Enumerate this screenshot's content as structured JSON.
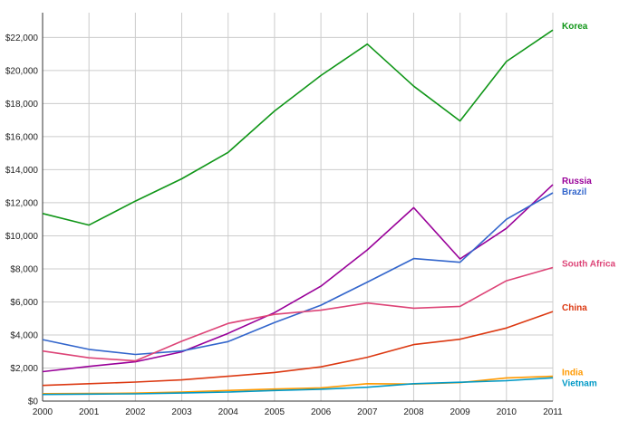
{
  "chart_data": {
    "type": "line",
    "title": "",
    "xlabel": "",
    "ylabel": "",
    "x": [
      2000,
      2001,
      2002,
      2003,
      2004,
      2005,
      2006,
      2007,
      2008,
      2009,
      2010,
      2011
    ],
    "x_tick_labels": [
      "2000",
      "2001",
      "2002",
      "2003",
      "2004",
      "2005",
      "2006",
      "2007",
      "2008",
      "2009",
      "2010",
      "2011"
    ],
    "ylim": [
      0,
      23500
    ],
    "y_ticks": [
      0,
      2000,
      4000,
      6000,
      8000,
      10000,
      12000,
      14000,
      16000,
      18000,
      20000,
      22000
    ],
    "y_tick_labels": [
      "$0",
      "$2,000",
      "$4,000",
      "$6,000",
      "$8,000",
      "$10,000",
      "$12,000",
      "$14,000",
      "$16,000",
      "$18,000",
      "$20,000",
      "$22,000"
    ],
    "grid": true,
    "legend": "inline labels at right end of each line",
    "series": [
      {
        "name": "Korea",
        "color": "#109618",
        "values": [
          11350,
          10650,
          12100,
          13450,
          15050,
          17550,
          19700,
          21600,
          19050,
          16950,
          20550,
          22450
        ]
      },
      {
        "name": "Russia",
        "color": "#990099",
        "values": [
          1780,
          2100,
          2380,
          2980,
          4100,
          5350,
          6950,
          9150,
          11700,
          8600,
          10450,
          13100
        ]
      },
      {
        "name": "Brazil",
        "color": "#3366cc",
        "values": [
          3720,
          3130,
          2820,
          3030,
          3600,
          4750,
          5800,
          7200,
          8620,
          8400,
          11000,
          12600
        ]
      },
      {
        "name": "South Africa",
        "color": "#dd4477",
        "values": [
          3030,
          2620,
          2430,
          3620,
          4700,
          5250,
          5500,
          5930,
          5620,
          5730,
          7280,
          8080
        ]
      },
      {
        "name": "China",
        "color": "#dc3912",
        "values": [
          950,
          1050,
          1150,
          1280,
          1500,
          1730,
          2070,
          2650,
          3420,
          3740,
          4420,
          5420
        ]
      },
      {
        "name": "India",
        "color": "#ff9900",
        "values": [
          450,
          460,
          480,
          550,
          640,
          730,
          800,
          1050,
          1030,
          1120,
          1400,
          1500
        ]
      },
      {
        "name": "Vietnam",
        "color": "#0099c6",
        "values": [
          400,
          420,
          440,
          490,
          550,
          640,
          720,
          840,
          1050,
          1140,
          1230,
          1410
        ]
      }
    ]
  }
}
